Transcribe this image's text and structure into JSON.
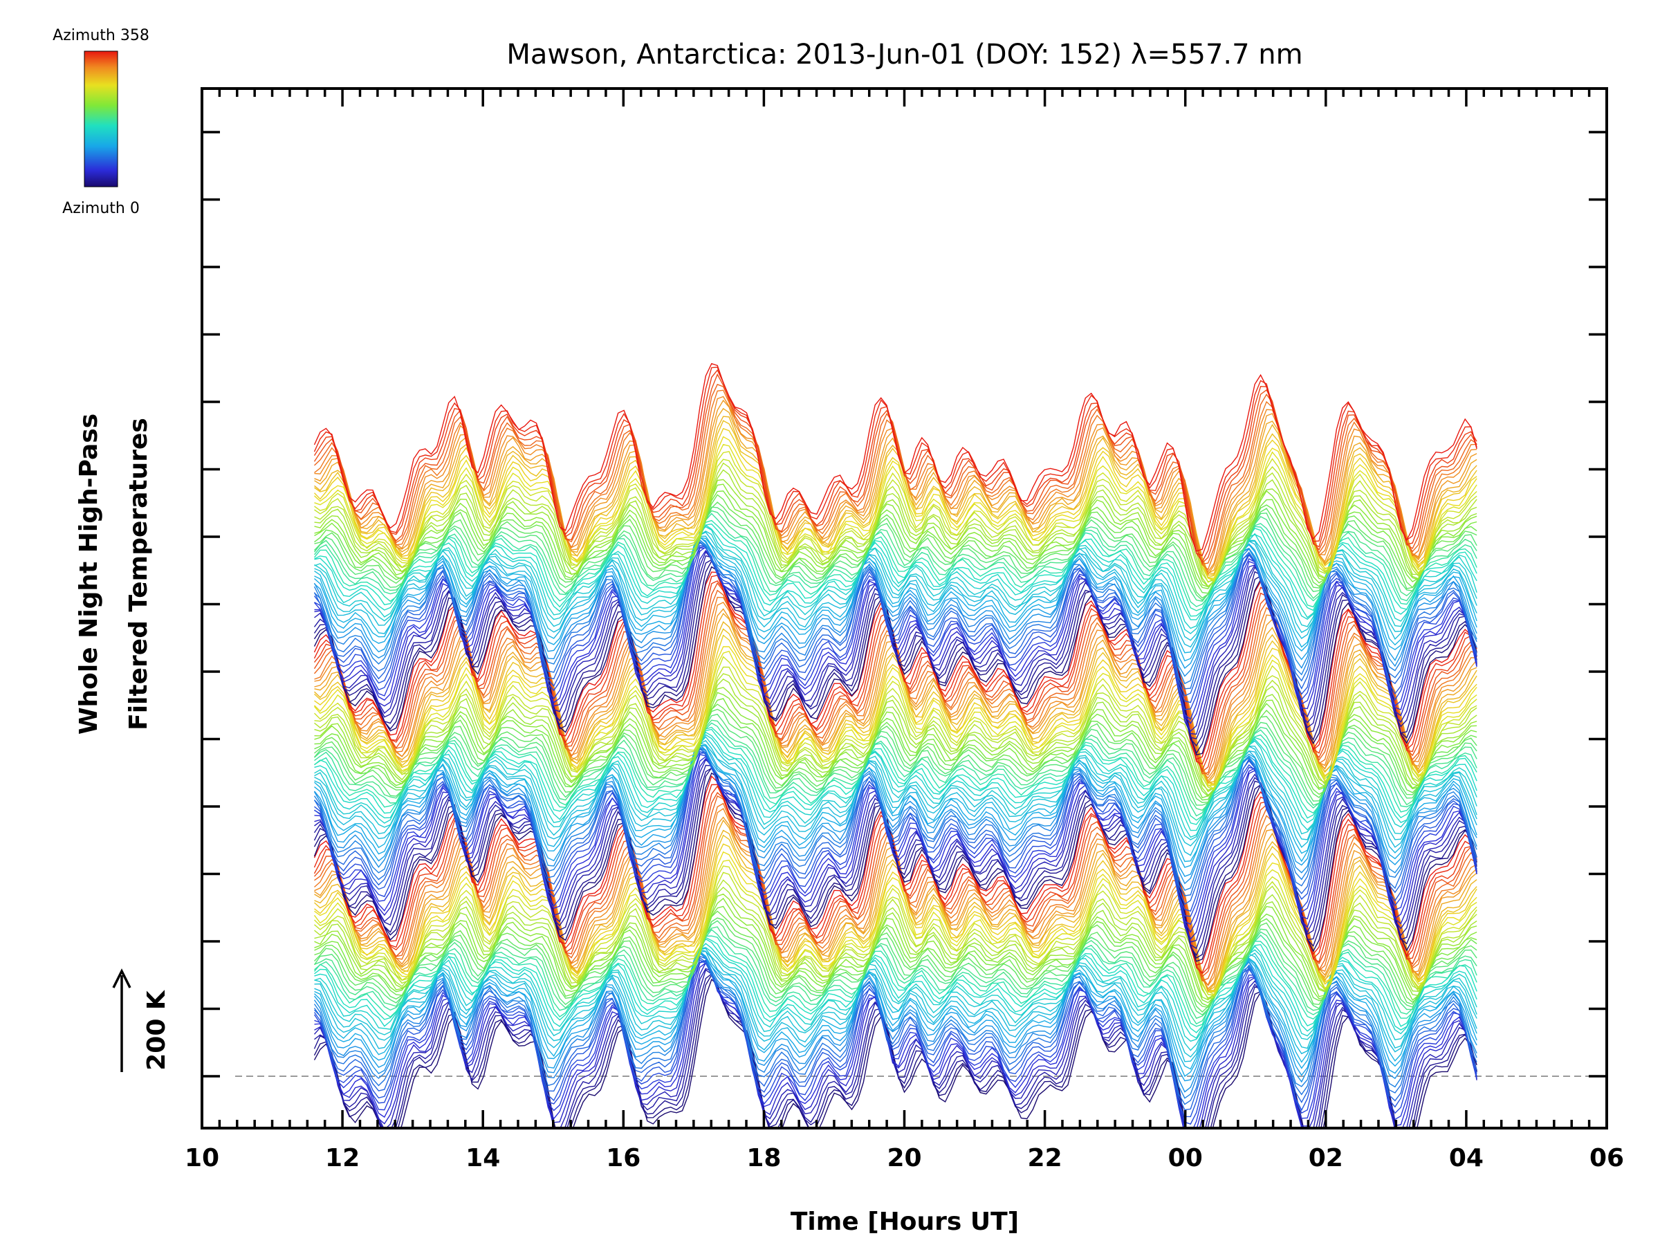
{
  "chart_data": {
    "type": "line",
    "title": "Mawson, Antarctica: 2013-Jun-01 (DOY: 152) λ=557.7 nm",
    "xlabel": "Time [Hours UT]",
    "ylabel_line1": "Whole Night High-Pass",
    "ylabel_line2": "Filtered Temperatures",
    "scale_bar_label": "200 K",
    "colorbar": {
      "top_label": "Azimuth 358",
      "bottom_label": "Azimuth 0",
      "colormap": "rainbow"
    },
    "x_tick_labels": [
      "10",
      "12",
      "14",
      "16",
      "18",
      "20",
      "22",
      "00",
      "02",
      "04",
      "06"
    ],
    "x_range_hours": [
      10,
      30
    ],
    "data_time_range_hours": [
      11.6,
      28.15
    ],
    "series_count": 150,
    "grid": false,
    "dashed_baseline": true
  }
}
